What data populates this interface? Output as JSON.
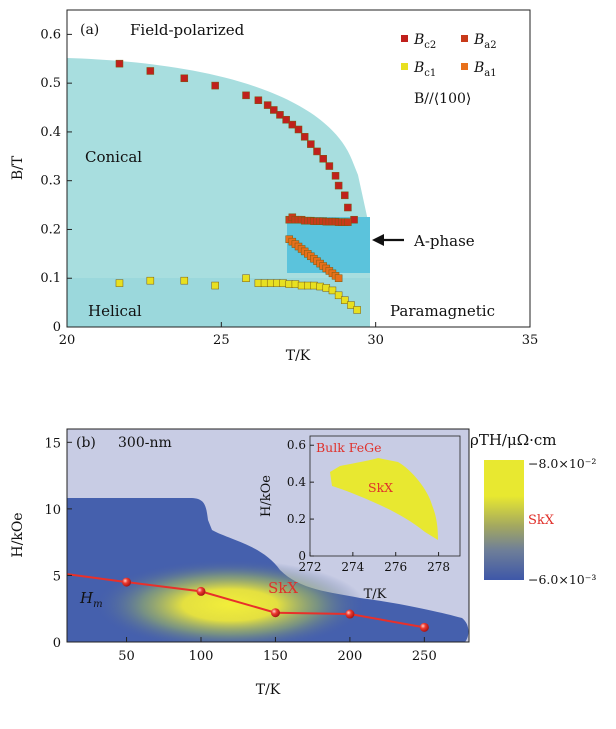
{
  "chart_data": [
    {
      "type": "scatter",
      "panel_label": "(a)",
      "xlabel": "T/K",
      "ylabel": "B/T",
      "xlim": [
        20,
        35
      ],
      "ylim": [
        0,
        0.65
      ],
      "x_ticks": [
        "20",
        "25",
        "30",
        "35"
      ],
      "y_ticks": [
        "0",
        "0.1",
        "0.2",
        "0.3",
        "0.4",
        "0.5",
        "0.6"
      ],
      "legend_title": "B//⟨100⟩",
      "legend": [
        "B_c2",
        "B_a2",
        "B_c1",
        "B_a1"
      ],
      "legend_placement": "top-right",
      "regions": [
        "Field-polarized",
        "Conical",
        "Helical",
        "Paramagnetic"
      ],
      "annotation": "A-phase",
      "series": [
        {
          "name": "B_c2",
          "color": "#c0201c",
          "x": [
            21.7,
            22.7,
            23.8,
            24.8,
            25.8,
            26.2,
            26.5,
            26.7,
            26.9,
            27.1,
            27.3,
            27.5,
            27.7,
            27.9,
            28.1,
            28.3,
            28.5,
            28.7,
            28.8,
            29.0,
            29.1,
            29.3
          ],
          "y": [
            0.54,
            0.525,
            0.51,
            0.495,
            0.475,
            0.465,
            0.455,
            0.445,
            0.435,
            0.425,
            0.415,
            0.405,
            0.39,
            0.375,
            0.36,
            0.345,
            0.33,
            0.31,
            0.29,
            0.27,
            0.245,
            0.22
          ]
        },
        {
          "name": "B_a2",
          "color": "#c83a1a",
          "x": [
            27.2,
            27.3,
            27.4,
            27.5,
            27.6,
            27.7,
            27.8,
            27.9,
            28.0,
            28.1,
            28.2,
            28.3,
            28.4,
            28.5,
            28.6,
            28.7,
            28.8,
            28.9,
            29.0,
            29.1
          ],
          "y": [
            0.22,
            0.225,
            0.22,
            0.22,
            0.22,
            0.218,
            0.218,
            0.218,
            0.217,
            0.217,
            0.217,
            0.217,
            0.216,
            0.216,
            0.216,
            0.216,
            0.215,
            0.215,
            0.215,
            0.215
          ]
        },
        {
          "name": "B_c1",
          "color": "#e8e020",
          "x": [
            21.7,
            22.7,
            23.8,
            24.8,
            25.8,
            26.2,
            26.4,
            26.6,
            26.8,
            27.0,
            27.2,
            27.4,
            27.6,
            27.8,
            28.0,
            28.2,
            28.4,
            28.6,
            28.8,
            29.0,
            29.2,
            29.4
          ],
          "y": [
            0.09,
            0.095,
            0.095,
            0.085,
            0.1,
            0.09,
            0.09,
            0.09,
            0.09,
            0.09,
            0.088,
            0.088,
            0.085,
            0.085,
            0.085,
            0.083,
            0.08,
            0.075,
            0.065,
            0.055,
            0.045,
            0.035
          ]
        },
        {
          "name": "B_a1",
          "color": "#e8701a",
          "x": [
            27.2,
            27.3,
            27.4,
            27.5,
            27.6,
            27.7,
            27.8,
            27.9,
            28.0,
            28.1,
            28.2,
            28.3,
            28.4,
            28.5,
            28.6,
            28.7,
            28.8
          ],
          "y": [
            0.18,
            0.175,
            0.17,
            0.165,
            0.16,
            0.155,
            0.15,
            0.145,
            0.14,
            0.135,
            0.13,
            0.125,
            0.12,
            0.115,
            0.11,
            0.105,
            0.1
          ]
        }
      ]
    },
    {
      "type": "heatmap",
      "panel_label": "(b)",
      "panel_title": "300-nm",
      "xlabel": "T/K",
      "ylabel": "H/kOe",
      "xlim": [
        10,
        280
      ],
      "ylim": [
        0,
        16
      ],
      "x_ticks": [
        "50",
        "100",
        "150",
        "200",
        "250"
      ],
      "y_ticks": [
        "0",
        "5",
        "10",
        "15"
      ],
      "colorbar": {
        "label": "ρTH/μΩ·cm",
        "max_label": "−8.0×10⁻²",
        "min_label": "−6.0×10⁻³",
        "mid_label": "SkX",
        "colors": [
          "#e8e830",
          "#3e57a8"
        ]
      },
      "region_label": "SkX",
      "line_label": "H_m",
      "series": [
        {
          "name": "H_m",
          "color": "#e8302a",
          "x": [
            10,
            50,
            100,
            150,
            200,
            250
          ],
          "y": [
            5.1,
            4.5,
            3.8,
            2.2,
            2.1,
            1.1
          ]
        }
      ],
      "inset": {
        "title": "Bulk FeGe",
        "region_label": "SkX",
        "xlabel": "T/K",
        "ylabel": "H/kOe",
        "xlim": [
          272,
          279
        ],
        "ylim": [
          0,
          0.65
        ],
        "x_ticks": [
          "272",
          "274",
          "276",
          "278"
        ],
        "y_ticks": [
          "0",
          "0.2",
          "0.4",
          "0.6"
        ]
      }
    }
  ]
}
